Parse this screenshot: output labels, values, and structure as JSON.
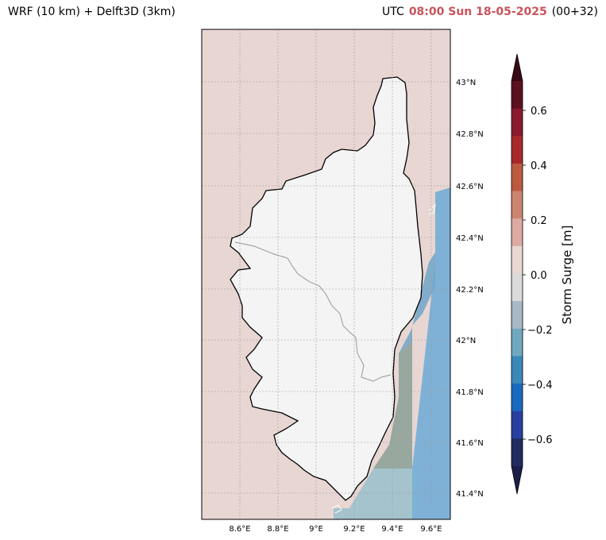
{
  "title_left": "WRF (10 km) + Delft3D (3km)",
  "title_right": {
    "prefix": "UTC",
    "datetime": "08:00 Sun 18-05-2025",
    "lead": "(00+32)"
  },
  "map": {
    "lon_ticks": [
      "8.6°E",
      "8.8°E",
      "9°E",
      "9.2°E",
      "9.4°E",
      "9.6°E"
    ],
    "lat_ticks": [
      "43°N",
      "42.8°N",
      "42.6°N",
      "42.4°N",
      "42.2°N",
      "42°N",
      "41.8°N",
      "41.6°N",
      "41.4°N"
    ],
    "sea_color": "#e8d6d3",
    "land_color": "#f4f4f4",
    "coast_color": "#000000",
    "border_color": "#a6a6a6"
  },
  "colorbar": {
    "label": "Storm Surge [m]",
    "ticks": [
      "0.6",
      "0.4",
      "0.2",
      "0.0",
      "−0.2",
      "−0.4",
      "−0.6"
    ],
    "colors_top_to_bottom": [
      "#5a1220",
      "#8a1a30",
      "#a82a28",
      "#bc5a40",
      "#cc8470",
      "#dcaaa0",
      "#e8d6d3",
      "#dadada",
      "#a8b8c4",
      "#70a8c0",
      "#3a88b8",
      "#1a6ac0",
      "#2840a0",
      "#222a60"
    ],
    "cap_top_color": "#3a0a14",
    "cap_bottom_color": "#1a1e48"
  }
}
